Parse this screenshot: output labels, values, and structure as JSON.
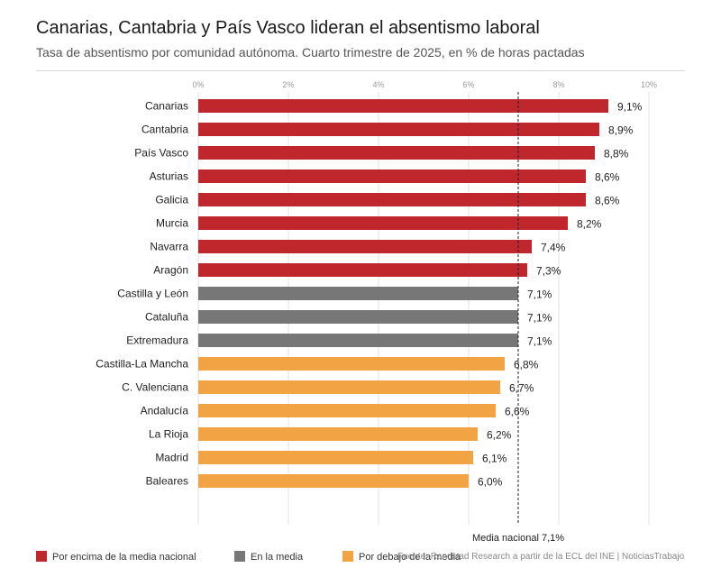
{
  "header": {
    "title": "Canarias, Cantabria y País Vasco lideran el absentismo laboral",
    "subtitle": "Tasa de absentismo por comunidad autónoma. Cuarto trimestre de 2025, en % de horas pactadas"
  },
  "colors": {
    "above": "#c0272d",
    "equal": "#777777",
    "below": "#f2a444",
    "grid": "#e2e2e2",
    "reference_line": "#222222"
  },
  "chart_data": {
    "type": "bar",
    "orientation": "horizontal",
    "categories": [
      "Canarias",
      "Cantabria",
      "País Vasco",
      "Asturias",
      "Galicia",
      "Murcia",
      "Navarra",
      "Aragón",
      "Castilla y León",
      "Cataluña",
      "Extremadura",
      "Castilla-La Mancha",
      "C. Valenciana",
      "Andalucía",
      "La Rioja",
      "Madrid",
      "Baleares"
    ],
    "values": [
      9.1,
      8.9,
      8.8,
      8.6,
      8.6,
      8.2,
      7.4,
      7.3,
      7.1,
      7.1,
      7.1,
      6.8,
      6.7,
      6.6,
      6.2,
      6.1,
      6.0
    ],
    "value_labels": [
      "9,1%",
      "8,9%",
      "8,8%",
      "8,6%",
      "8,6%",
      "8,2%",
      "7,4%",
      "7,3%",
      "7,1%",
      "7,1%",
      "7,1%",
      "6,8%",
      "6,7%",
      "6,6%",
      "6,2%",
      "6,1%",
      "6,0%"
    ],
    "groups": [
      "above",
      "above",
      "above",
      "above",
      "above",
      "above",
      "above",
      "above",
      "equal",
      "equal",
      "equal",
      "below",
      "below",
      "below",
      "below",
      "below",
      "below"
    ],
    "xlim": [
      0,
      10
    ],
    "xticks": [
      0,
      2,
      4,
      6,
      8,
      10
    ],
    "xtick_labels": [
      "0%",
      "2%",
      "4%",
      "6%",
      "8%",
      "10%"
    ],
    "xaxis_position": "top",
    "grid": true,
    "reference_line": {
      "value": 7.1,
      "label": "Media nacional 7,1%"
    },
    "legend": {
      "placement": "bottom-left",
      "items": [
        {
          "key": "above",
          "label": "Por encima de la media nacional"
        },
        {
          "key": "equal",
          "label": "En la media"
        },
        {
          "key": "below",
          "label": "Por debajo de la media"
        }
      ]
    }
  },
  "footer": {
    "source": "Fuente: Randstad Research a partir de la ECL del INE | NoticiasTrabajo"
  }
}
